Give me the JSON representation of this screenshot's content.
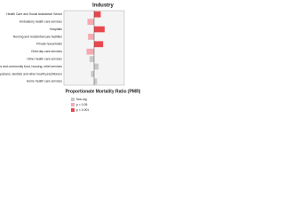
{
  "chart_data": {
    "type": "hbar",
    "title": "Industry",
    "x_label": "Proportionate Mortality Ratio (PMR)",
    "categories": [
      "Health Care and Social Assistance Sector",
      "Ambulatory health care services",
      "Hospitals",
      "Nursing and residential care facilities",
      "Private households",
      "Child day care services",
      "Other health care services",
      "Individual and family services and community food, housing, relief services",
      "Offices of physicians, dentists and other health practitioners",
      "Home health care services"
    ],
    "values": [
      1.22,
      0.78,
      1.35,
      0.8,
      1.3,
      0.75,
      0.85,
      1.15,
      0.9,
      1.1
    ],
    "significance": [
      2,
      1,
      2,
      1,
      2,
      1,
      0,
      0,
      0,
      0
    ],
    "xlim": [
      0,
      2
    ],
    "reference": 1,
    "legend": [
      {
        "label": "Non-sig",
        "color": "#c8c8c8"
      },
      {
        "label": "p < 0.05",
        "color": "#f5a9b0"
      },
      {
        "label": "p < 0.001",
        "color": "#e8474d"
      }
    ]
  }
}
